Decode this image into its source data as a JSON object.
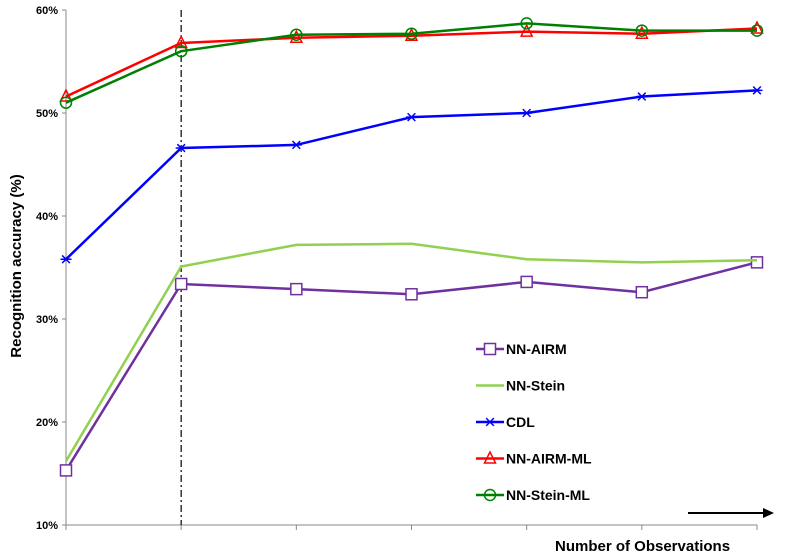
{
  "chart_data": {
    "type": "line",
    "title": "",
    "xlabel": "Number of Observations",
    "ylabel": "Recognition accuracy (%)",
    "x": [
      1,
      2,
      3,
      4,
      5,
      6,
      7
    ],
    "ylim": [
      10,
      60
    ],
    "yticks": [
      10,
      20,
      30,
      40,
      50,
      60
    ],
    "ytick_labels": [
      "10%",
      "20%",
      "30%",
      "40%",
      "50%",
      "60%"
    ],
    "vline_x": 2,
    "arrow_direction": "right",
    "legend_position": "lower-right",
    "grid": false,
    "series": [
      {
        "name": "NN-AIRM",
        "color": "#7030a0",
        "marker": "square",
        "values": [
          15.3,
          33.4,
          32.9,
          32.4,
          33.6,
          32.6,
          35.5
        ]
      },
      {
        "name": "NN-Stein",
        "color": "#92d050",
        "marker": "none",
        "values": [
          16.2,
          35.1,
          37.2,
          37.3,
          35.8,
          35.5,
          35.7
        ]
      },
      {
        "name": "CDL",
        "color": "#0000ff",
        "marker": "star",
        "values": [
          35.8,
          46.6,
          46.9,
          49.6,
          50.0,
          51.6,
          52.2
        ]
      },
      {
        "name": "NN-AIRM-ML",
        "color": "#ff0000",
        "marker": "triangle",
        "values": [
          51.6,
          56.8,
          57.3,
          57.5,
          57.9,
          57.7,
          58.2
        ]
      },
      {
        "name": "NN-Stein-ML",
        "color": "#008000",
        "marker": "circle",
        "values": [
          51.0,
          56.0,
          57.6,
          57.7,
          58.7,
          58.0,
          58.0
        ]
      }
    ]
  }
}
